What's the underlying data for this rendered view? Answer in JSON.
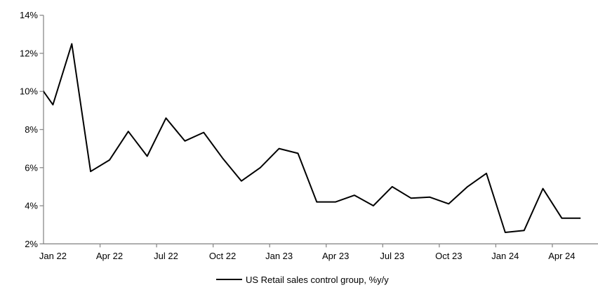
{
  "chart_data": {
    "type": "line",
    "title": "",
    "xlabel": "",
    "ylabel": "",
    "ylim": [
      2,
      14
    ],
    "y_tick_step": 2,
    "y_tick_labels": [
      "14%",
      "12%",
      "10%",
      "8%",
      "6%",
      "4%",
      "2%"
    ],
    "x_tick_labels": [
      "Jan 22",
      "Apr 22",
      "Jul 22",
      "Oct 22",
      "Jan 23",
      "Apr 23",
      "Jul 23",
      "Oct 23",
      "Jan 24",
      "Apr 24"
    ],
    "grid": "off",
    "legend_position": "bottom-center",
    "categories": [
      "Jan 22",
      "Feb 22",
      "Mar 22",
      "Apr 22",
      "May 22",
      "Jun 22",
      "Jul 22",
      "Aug 22",
      "Sep 22",
      "Oct 22",
      "Nov 22",
      "Dec 22",
      "Jan 23",
      "Feb 23",
      "Mar 23",
      "Apr 23",
      "May 23",
      "Jun 23",
      "Jul 23",
      "Aug 23",
      "Sep 23",
      "Oct 23",
      "Nov 23",
      "Dec 23",
      "Jan 24",
      "Feb 24",
      "Mar 24",
      "Apr 24",
      "May 24"
    ],
    "series": [
      {
        "name": "US Retail sales control group, %y/y",
        "values": [
          9.3,
          12.5,
          5.8,
          6.4,
          7.9,
          6.6,
          8.6,
          7.4,
          7.85,
          6.5,
          5.3,
          6.0,
          7.0,
          6.75,
          4.2,
          4.2,
          4.55,
          4.0,
          5.0,
          4.4,
          4.45,
          4.1,
          5.0,
          5.7,
          2.6,
          2.7,
          4.9,
          3.35,
          3.35
        ]
      }
    ],
    "partial_left_edge_point": {
      "note": "line enters plot at left axis, only segment into Jan 22 visible",
      "value_at_axis": 9.9,
      "implied_prior_value": 10.7
    }
  },
  "legend": {
    "label": "US Retail sales control group, %y/y"
  },
  "colors": {
    "series_line": "#000000",
    "axis": "#8a8a8a",
    "text": "#000000",
    "background": "#ffffff"
  }
}
